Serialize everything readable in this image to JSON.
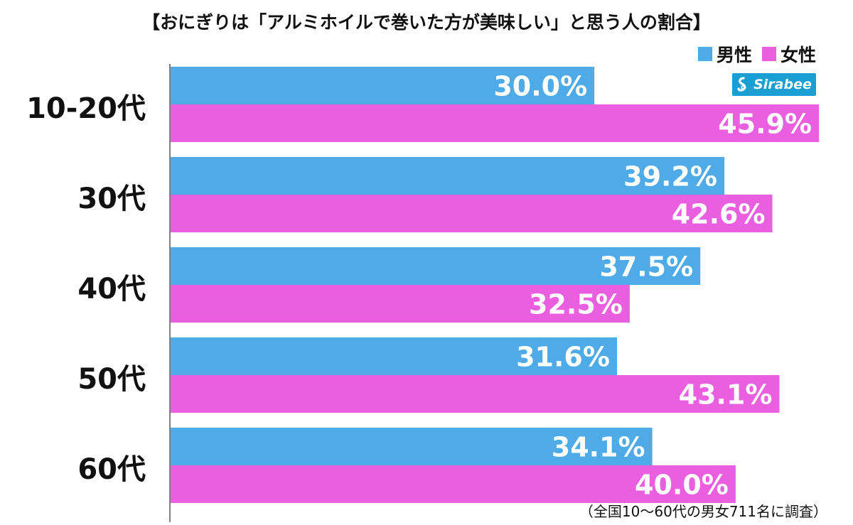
{
  "title": "【おにぎりは「アルミホイルで巻いた方が美味しい」と思う人の割合】",
  "footnote": "（全国10〜60代の男女711名に調査）",
  "logo": {
    "text": "Sirabee",
    "color": "#1a9fd3"
  },
  "colors": {
    "male": "#4fabe8",
    "female": "#ea5fe0",
    "label": "#ffffff",
    "axis": "#000000"
  },
  "chart_data": {
    "type": "bar",
    "orientation": "horizontal",
    "categories": [
      "10-20代",
      "30代",
      "40代",
      "50代",
      "60代"
    ],
    "series": [
      {
        "name": "男性",
        "values": [
          30.0,
          39.2,
          37.5,
          31.6,
          34.1
        ]
      },
      {
        "name": "女性",
        "values": [
          45.9,
          42.6,
          32.5,
          43.1,
          40.0
        ]
      }
    ],
    "value_labels": {
      "男性": [
        "30.0%",
        "39.2%",
        "37.5%",
        "31.6%",
        "34.1%"
      ],
      "女性": [
        "45.9%",
        "42.6%",
        "32.5%",
        "43.1%",
        "40.0%"
      ]
    },
    "xlim": [
      0,
      47
    ],
    "grid": false,
    "legend": "top-right"
  }
}
